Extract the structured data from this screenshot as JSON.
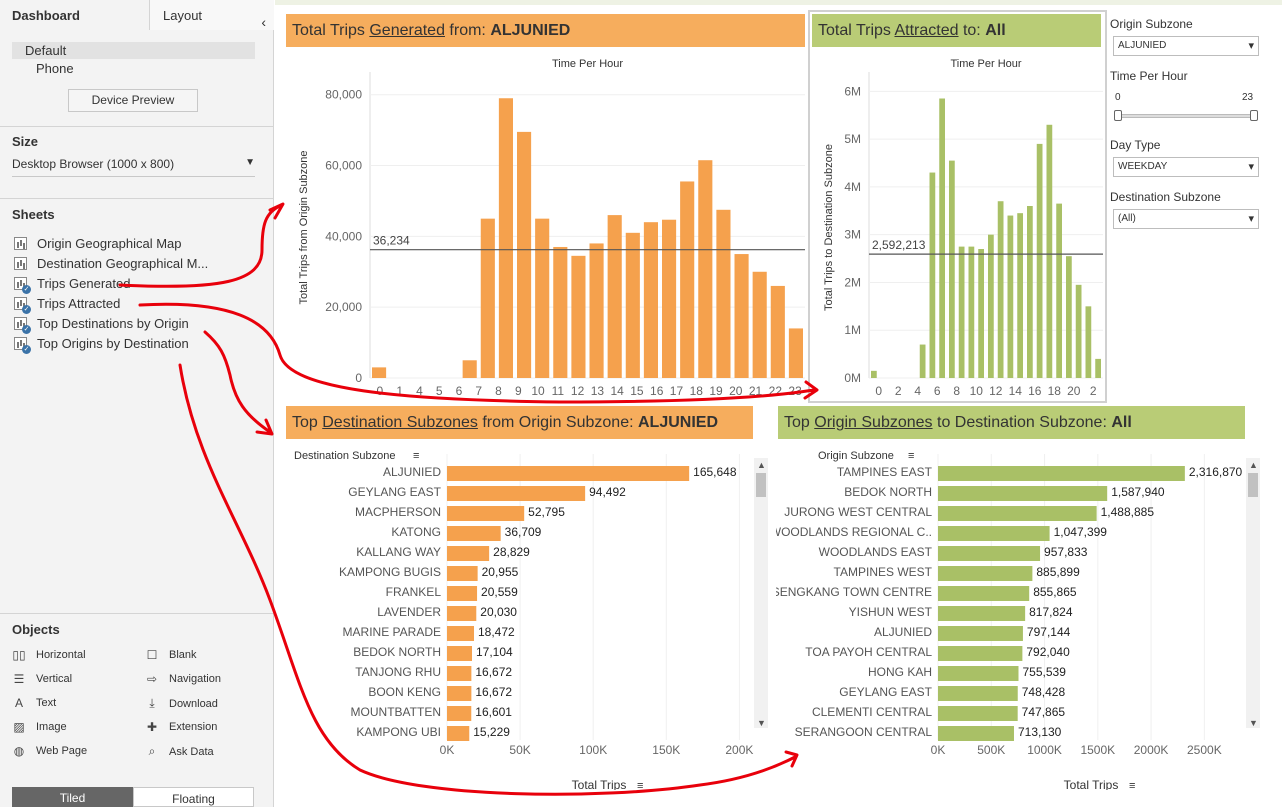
{
  "left_panel": {
    "tabs": {
      "dashboard": "Dashboard",
      "layout": "Layout"
    },
    "device": {
      "items": [
        "Default",
        "Phone"
      ],
      "preview_button": "Device Preview"
    },
    "size": {
      "title": "Size",
      "value": "Desktop Browser (1000 x 800)"
    },
    "sheets": {
      "title": "Sheets",
      "items": [
        {
          "label": "Origin Geographical Map",
          "in_use": false
        },
        {
          "label": "Destination Geographical M...",
          "in_use": false
        },
        {
          "label": "Trips Generated",
          "in_use": true
        },
        {
          "label": "Trips Attracted",
          "in_use": true
        },
        {
          "label": "Top Destinations by Origin",
          "in_use": true
        },
        {
          "label": "Top Origins by Destination",
          "in_use": true
        }
      ]
    },
    "objects": {
      "title": "Objects",
      "items": [
        {
          "label": "Horizontal",
          "icon": "horizontal-icon"
        },
        {
          "label": "Blank",
          "icon": "blank-icon"
        },
        {
          "label": "Vertical",
          "icon": "vertical-icon"
        },
        {
          "label": "Navigation",
          "icon": "navigation-icon"
        },
        {
          "label": "Text",
          "icon": "text-icon"
        },
        {
          "label": "Download",
          "icon": "download-icon"
        },
        {
          "label": "Image",
          "icon": "image-icon"
        },
        {
          "label": "Extension",
          "icon": "extension-icon"
        },
        {
          "label": "Web Page",
          "icon": "globe-icon"
        },
        {
          "label": "Ask Data",
          "icon": "ask-data-icon"
        }
      ]
    },
    "layout_toggle": {
      "tiled": "Tiled",
      "floating": "Floating"
    }
  },
  "controls": {
    "origin_subzone": {
      "label": "Origin Subzone",
      "value": "ALJUNIED"
    },
    "time_per_hour": {
      "label": "Time Per Hour",
      "min": "0",
      "max": "23"
    },
    "day_type": {
      "label": "Day Type",
      "value": "WEEKDAY"
    },
    "destination_subzone": {
      "label": "Destination Subzone",
      "value": "(All)"
    }
  },
  "headers": {
    "generated": {
      "pre": "Total Trips ",
      "link": "Generated",
      "mid": " from: ",
      "bold": "ALJUNIED"
    },
    "attracted": {
      "pre": "Total Trips ",
      "link": "Attracted",
      "mid": " to: ",
      "bold": "All"
    },
    "top_dest": {
      "pre": "Top ",
      "link": "Destination Subzones",
      "mid": " from Origin Subzone: ",
      "bold": "ALJUNIED"
    },
    "top_orig": {
      "pre": "Top ",
      "link": "Origin Subzones",
      "mid": " to Destination Subzone: ",
      "bold": "All"
    }
  },
  "colors": {
    "orange": "#f5a14d",
    "orange_header": "#f6ad5d",
    "green": "#a9c066",
    "green_header": "#b9cc76",
    "annotation_red": "#e8000b"
  },
  "chart_data": [
    {
      "type": "bar",
      "title": "Time Per Hour",
      "ylabel": "Total Trips from Origin Subzone",
      "categories": [
        "0",
        "1",
        "2",
        "3",
        "4",
        "5",
        "6",
        "7",
        "8",
        "9",
        "10",
        "11",
        "12",
        "13",
        "14",
        "15",
        "16",
        "17",
        "18",
        "19",
        "20",
        "21",
        "22",
        "23"
      ],
      "tick_labels": [
        "0",
        "1",
        "4",
        "5",
        "6",
        "7",
        "8",
        "9",
        "10",
        "11",
        "12",
        "13",
        "14",
        "15",
        "16",
        "17",
        "18",
        "19",
        "20",
        "21",
        "22",
        "23"
      ],
      "values": [
        3000,
        0,
        0,
        0,
        0,
        5000,
        45000,
        79000,
        69500,
        45000,
        37000,
        34500,
        38000,
        46000,
        41000,
        44000,
        44700,
        55500,
        61500,
        47500,
        35000,
        30000,
        26000,
        14000
      ],
      "ylim": [
        0,
        85000
      ],
      "yticks": [
        "0",
        "20,000",
        "40,000",
        "60,000",
        "80,000"
      ],
      "reference_line": {
        "value": 36234,
        "label": "36,234"
      }
    },
    {
      "type": "bar",
      "title": "Time Per Hour",
      "ylabel": "Total Trips to Destination Subzone",
      "categories": [
        "0",
        "1",
        "2",
        "3",
        "4",
        "5",
        "6",
        "7",
        "8",
        "9",
        "10",
        "11",
        "12",
        "13",
        "14",
        "15",
        "16",
        "17",
        "18",
        "19",
        "20",
        "21",
        "22",
        "23"
      ],
      "tick_labels": [
        "0",
        "2",
        "4",
        "6",
        "8",
        "10",
        "12",
        "14",
        "16",
        "18",
        "20",
        "2"
      ],
      "values": [
        150000,
        0,
        0,
        0,
        0,
        700000,
        4300000,
        5850000,
        4550000,
        2750000,
        2750000,
        2700000,
        3000000,
        3700000,
        3400000,
        3450000,
        3600000,
        4900000,
        5300000,
        3650000,
        2550000,
        1950000,
        1500000,
        400000
      ],
      "ylim": [
        0,
        6300000
      ],
      "yticks": [
        "0M",
        "1M",
        "2M",
        "3M",
        "4M",
        "5M",
        "6M"
      ],
      "reference_line": {
        "value": 2592213,
        "label": "2,592,213"
      }
    },
    {
      "type": "bar",
      "orientation": "horizontal",
      "ylabel": "Destination Subzone",
      "xlabel": "Total Trips",
      "categories": [
        "ALJUNIED",
        "GEYLANG EAST",
        "MACPHERSON",
        "KATONG",
        "KALLANG WAY",
        "KAMPONG BUGIS",
        "FRANKEL",
        "LAVENDER",
        "MARINE PARADE",
        "BEDOK NORTH",
        "TANJONG RHU",
        "BOON KENG",
        "MOUNTBATTEN",
        "KAMPONG UBI"
      ],
      "values": [
        165648,
        94492,
        52795,
        36709,
        28829,
        20955,
        20559,
        20030,
        18472,
        17104,
        16672,
        16672,
        16601,
        15229
      ],
      "labels": [
        "165,648",
        "94,492",
        "52,795",
        "36,709",
        "28,829",
        "20,955",
        "20,559",
        "20,030",
        "18,472",
        "17,104",
        "16,672",
        "16,672",
        "16,601",
        "15,229"
      ],
      "xlim": [
        0,
        210000
      ],
      "xticks": [
        "0K",
        "50K",
        "100K",
        "150K",
        "200K"
      ]
    },
    {
      "type": "bar",
      "orientation": "horizontal",
      "ylabel": "Origin Subzone",
      "xlabel": "Total Trips",
      "categories": [
        "TAMPINES EAST",
        "BEDOK NORTH",
        "JURONG WEST CENTRAL",
        "WOODLANDS REGIONAL C..",
        "WOODLANDS EAST",
        "TAMPINES WEST",
        "SENGKANG TOWN CENTRE",
        "YISHUN WEST",
        "ALJUNIED",
        "TOA PAYOH CENTRAL",
        "HONG KAH",
        "GEYLANG EAST",
        "CLEMENTI CENTRAL",
        "SERANGOON CENTRAL"
      ],
      "values": [
        2316870,
        1587940,
        1488885,
        1047399,
        957833,
        885899,
        855865,
        817824,
        797144,
        792040,
        755539,
        748428,
        747865,
        713130
      ],
      "labels": [
        "2,316,870",
        "1,587,940",
        "1,488,885",
        "1,047,399",
        "957,833",
        "885,899",
        "855,865",
        "817,824",
        "797,144",
        "792,040",
        "755,539",
        "748,428",
        "747,865",
        "713,130"
      ],
      "xlim": [
        0,
        2750000
      ],
      "xticks": [
        "0K",
        "500K",
        "1000K",
        "1500K",
        "2000K",
        "2500K"
      ]
    }
  ]
}
